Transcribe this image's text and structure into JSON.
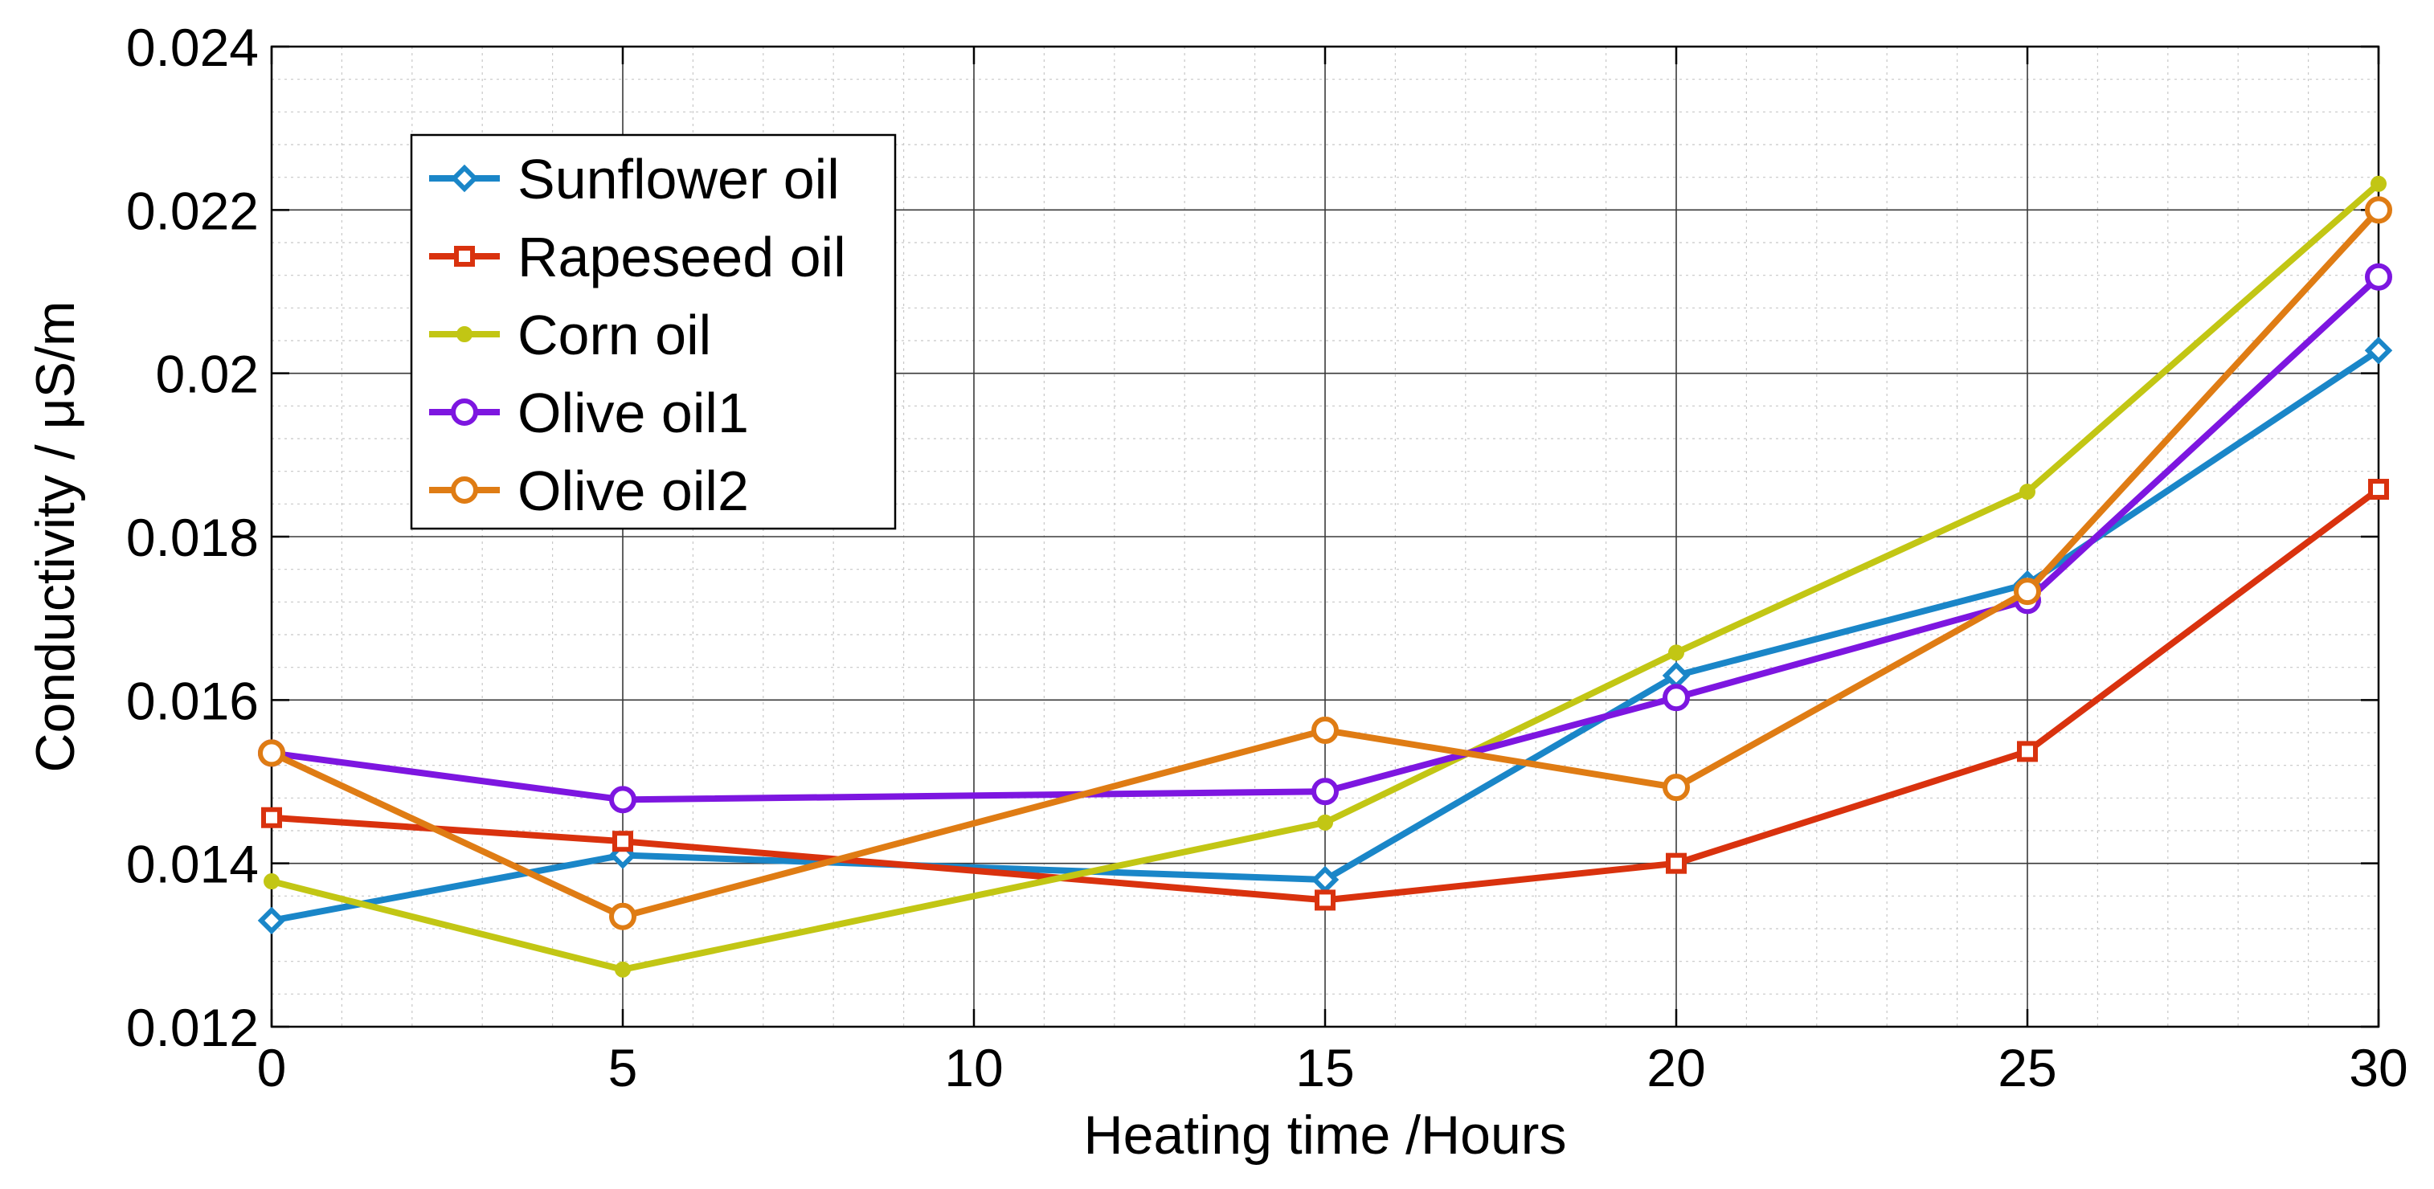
{
  "chart_data": {
    "type": "line",
    "title": "",
    "xlabel": "Heating time /Hours",
    "ylabel": "Conductivity / μS/m",
    "xlim": [
      0,
      30
    ],
    "ylim": [
      0.012,
      0.024
    ],
    "x_ticks": [
      0,
      5,
      10,
      15,
      20,
      25,
      30
    ],
    "x_tick_labels": [
      "0",
      "5",
      "10",
      "15",
      "20",
      "25",
      "30"
    ],
    "y_ticks": [
      0.012,
      0.014,
      0.016,
      0.018,
      0.02,
      0.022,
      0.024
    ],
    "y_tick_labels": [
      "0.012",
      "0.014",
      "0.016",
      "0.018",
      "0.02",
      "0.022",
      "0.024"
    ],
    "grid": true,
    "minor_grid": true,
    "legend_position": "top-left",
    "series": [
      {
        "name": "Sunflower oil",
        "color": "#1a86c8",
        "marker": "diamond",
        "x": [
          0,
          5,
          15,
          20,
          25,
          30
        ],
        "y": [
          0.0133,
          0.0141,
          0.0138,
          0.0163,
          0.01742,
          0.02028
        ]
      },
      {
        "name": "Rapeseed oil",
        "color": "#d9320e",
        "marker": "square",
        "x": [
          0,
          5,
          15,
          20,
          25,
          30
        ],
        "y": [
          0.01456,
          0.01427,
          0.01355,
          0.014,
          0.01537,
          0.01858
        ]
      },
      {
        "name": "Corn oil",
        "color": "#c2c614",
        "marker": "dot",
        "x": [
          0,
          5,
          15,
          20,
          25,
          30
        ],
        "y": [
          0.01378,
          0.0127,
          0.0145,
          0.01658,
          0.01855,
          0.02232
        ]
      },
      {
        "name": "Olive oil1",
        "color": "#7d16e0",
        "marker": "circle",
        "x": [
          0,
          5,
          15,
          20,
          25,
          30
        ],
        "y": [
          0.01535,
          0.01478,
          0.01488,
          0.01603,
          0.01722,
          0.02118
        ]
      },
      {
        "name": "Olive oil2",
        "color": "#df7c14",
        "marker": "circle",
        "x": [
          0,
          5,
          15,
          20,
          25,
          30
        ],
        "y": [
          0.01535,
          0.01335,
          0.01563,
          0.01493,
          0.01733,
          0.022
        ]
      }
    ]
  }
}
